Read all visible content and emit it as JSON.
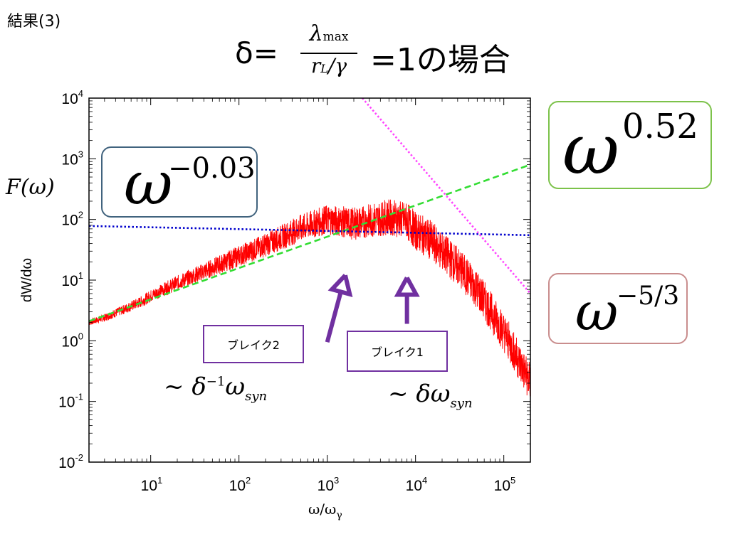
{
  "slide": {
    "label": "結果(3)",
    "heading": {
      "prefix": "δ=",
      "numerator_symbol": "λ",
      "numerator_sub": "max",
      "denominator_symbol": "r",
      "denominator_sub": "L",
      "denominator_suffix": "/γ",
      "suffix": "=1の場合"
    },
    "function_label": "F(ω)",
    "fit_labels": [
      {
        "id": "m003",
        "base": "ω",
        "exponent": "−0.03",
        "border": "#41637e"
      },
      {
        "id": "p052",
        "base": "ω",
        "exponent": "0.52",
        "border": "#7cc24a"
      },
      {
        "id": "m53",
        "base": "ω",
        "exponent": "−5/3",
        "border": "#c98d8d"
      }
    ],
    "breaks": [
      {
        "id": "break2",
        "label": "ブレイク2",
        "note_tilde": "~",
        "note_symbol": "δ",
        "note_exp": "−1",
        "note_omega": "ω",
        "note_sub": "syn"
      },
      {
        "id": "break1",
        "label": "ブレイク1",
        "note_tilde": "~",
        "note_symbol": "δ",
        "note_omega": "ω",
        "note_sub": "syn"
      }
    ]
  },
  "chart_data": {
    "type": "line",
    "xlabel": "ω/ω",
    "xlabel_sub": "γ",
    "ylabel": "dW/dω",
    "x_scale": "log",
    "y_scale": "log",
    "xlim": [
      2,
      200000
    ],
    "ylim": [
      0.01,
      10000
    ],
    "x_ticks": [
      {
        "base": "10",
        "exp": "1",
        "value": 10
      },
      {
        "base": "10",
        "exp": "2",
        "value": 100
      },
      {
        "base": "10",
        "exp": "3",
        "value": 1000
      },
      {
        "base": "10",
        "exp": "4",
        "value": 10000
      },
      {
        "base": "10",
        "exp": "5",
        "value": 100000
      }
    ],
    "y_ticks": [
      {
        "base": "10",
        "exp": "4",
        "value": 10000
      },
      {
        "base": "10",
        "exp": "3",
        "value": 1000
      },
      {
        "base": "10",
        "exp": "2",
        "value": 100
      },
      {
        "base": "10",
        "exp": "1",
        "value": 10
      },
      {
        "base": "10",
        "exp": "0",
        "value": 1
      },
      {
        "base": "10",
        "exp": "-1",
        "value": 0.1
      },
      {
        "base": "10",
        "exp": "-2",
        "value": 0.01
      }
    ],
    "grid": false,
    "series": [
      {
        "style": "noisy-line",
        "color": "#ff0000",
        "x": [
          2,
          3,
          5,
          8,
          10,
          20,
          50,
          100,
          200,
          500,
          1000,
          2000,
          5000,
          8000,
          10000,
          15000,
          20000,
          30000,
          50000,
          70000,
          100000,
          150000,
          200000
        ],
        "y": [
          2.0,
          2.4,
          3.3,
          4.5,
          5.5,
          9,
          16,
          25,
          38,
          72,
          100,
          85,
          110,
          95,
          65,
          45,
          30,
          17,
          7,
          3.2,
          1.4,
          0.45,
          0.2
        ]
      },
      {
        "style": "dashed",
        "color": "#33dd33",
        "x": [
          2,
          200000
        ],
        "y": [
          2.1,
          800
        ]
      },
      {
        "style": "dotted",
        "color": "#0000cc",
        "x": [
          2,
          200000
        ],
        "y": [
          78,
          55
        ]
      },
      {
        "style": "dotted",
        "color": "#ff44ff",
        "x": [
          2500,
          200000
        ],
        "y": [
          10000,
          6
        ]
      }
    ],
    "arrows": [
      {
        "from": [
          1000,
          0.95
        ],
        "to": [
          1600,
          12
        ],
        "color": "#7030a0"
      },
      {
        "from": [
          8000,
          1.9
        ],
        "to": [
          8000,
          11
        ],
        "color": "#7030a0"
      }
    ]
  }
}
